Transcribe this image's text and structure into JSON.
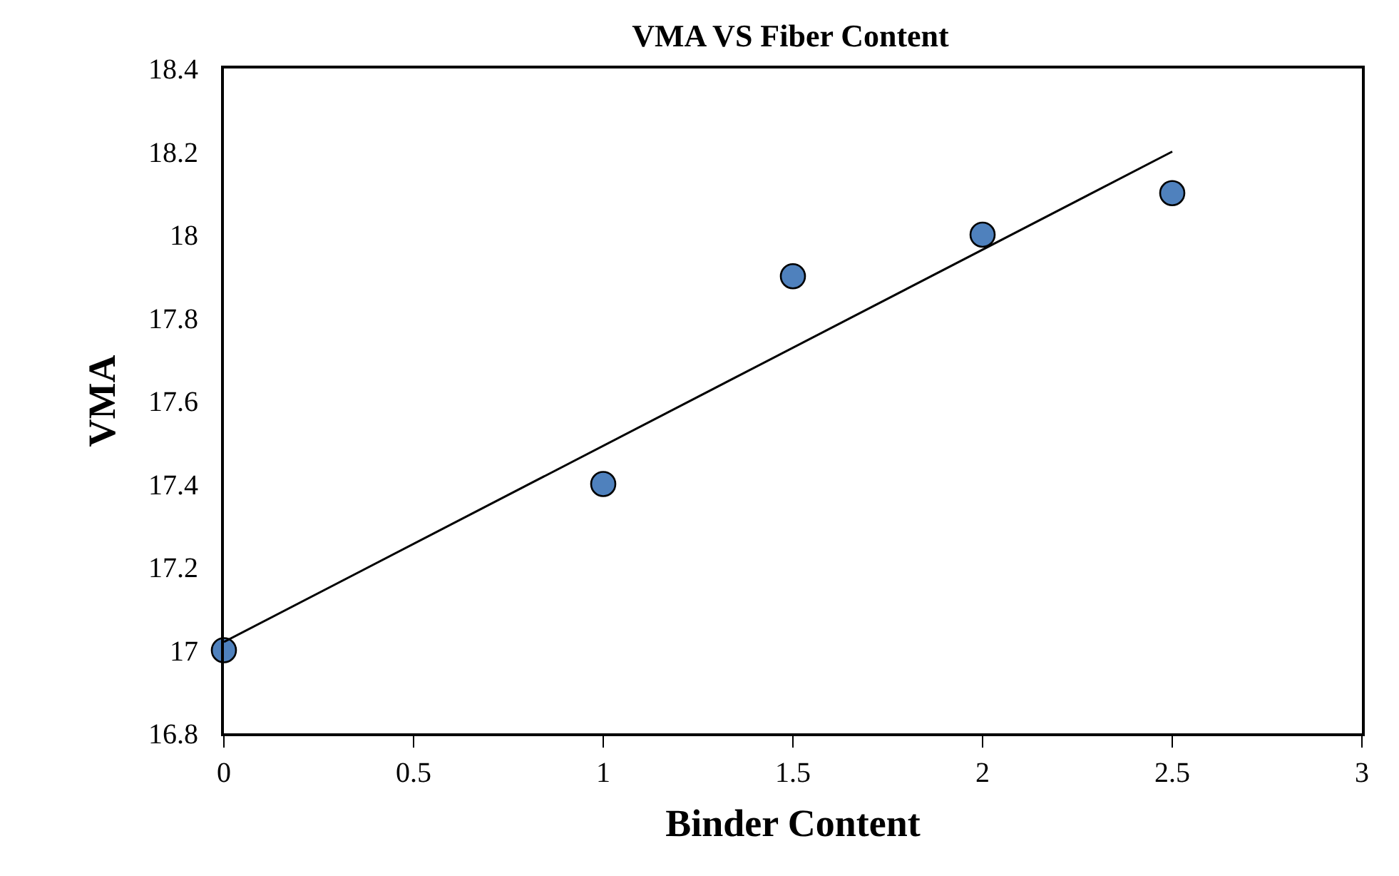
{
  "chart_data": {
    "type": "scatter",
    "title": "VMA VS Fiber Content",
    "xlabel": "Binder Content",
    "ylabel": "VMA",
    "x": [
      0,
      1,
      1.5,
      2,
      2.5
    ],
    "series": [
      {
        "color": "#4f81bd",
        "values": [
          17,
          17.4,
          17.9,
          18,
          18.1
        ],
        "marker": "circle"
      },
      {
        "type": "line",
        "color": "#000000",
        "x": [
          0,
          2.5
        ],
        "values": [
          17.02,
          18.2
        ],
        "marker": "none",
        "line_style": "solid"
      }
    ],
    "xlim": [
      0,
      3
    ],
    "xticks": [
      0,
      0.5,
      1,
      1.5,
      2,
      2.5,
      3
    ],
    "ylim": [
      16.8,
      18.4
    ],
    "yticks": [
      16.8,
      17,
      17.2,
      17.4,
      17.6,
      17.8,
      18,
      18.2,
      18.4
    ]
  }
}
